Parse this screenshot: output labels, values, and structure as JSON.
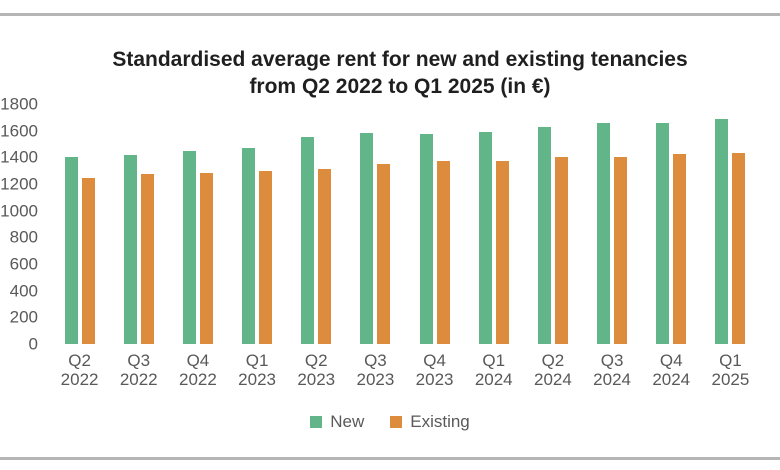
{
  "page": {
    "top_rule_color": "#b5b5b5",
    "bottom_rule_color": "#b5b5b5",
    "background": "#ffffff"
  },
  "colors": {
    "title_text": "#1f1f1f",
    "axis_text": "#595959",
    "legend_text": "#595959"
  },
  "chart_data": {
    "type": "bar",
    "title": "Standardised average rent for new and existing tenancies from Q2 2022 to Q1 2025 (in €)",
    "xlabel": "",
    "ylabel": "",
    "categories": [
      "Q2 2022",
      "Q3 2022",
      "Q4 2022",
      "Q1 2023",
      "Q2 2023",
      "Q3 2023",
      "Q4 2023",
      "Q1 2024",
      "Q2 2024",
      "Q3 2024",
      "Q4 2024",
      "Q1 2025"
    ],
    "series": [
      {
        "name": "New",
        "color": "#62b489",
        "values": [
          1400,
          1415,
          1450,
          1470,
          1555,
          1580,
          1575,
          1590,
          1625,
          1660,
          1660,
          1685
        ]
      },
      {
        "name": "Existing",
        "color": "#dd8c3d",
        "values": [
          1245,
          1275,
          1280,
          1295,
          1315,
          1350,
          1370,
          1370,
          1400,
          1400,
          1425,
          1435
        ]
      }
    ],
    "ylim": [
      0,
      1800
    ],
    "ytick_step": 200,
    "grid": false,
    "legend_position": "bottom"
  }
}
